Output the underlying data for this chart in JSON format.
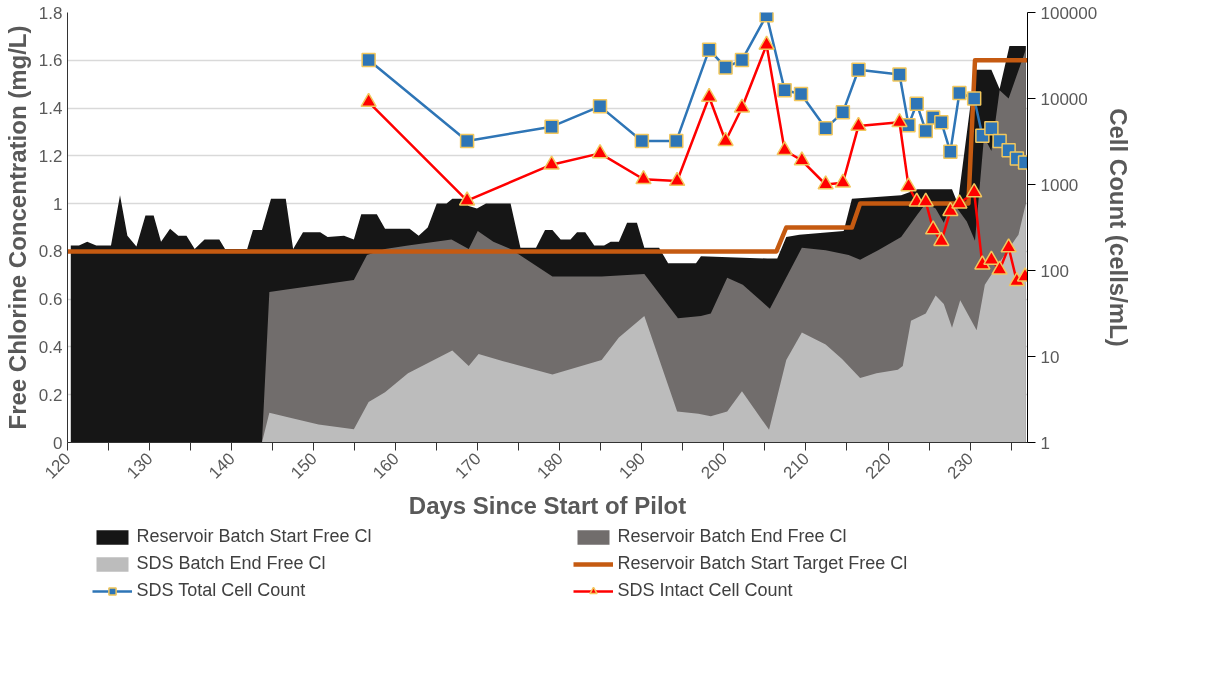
{
  "chart_data": {
    "type": "area",
    "xlabel": "Days Since Start of Pilot",
    "ylabel": "Free Chlorine Concentration (mg/L)",
    "y2label": "Cell Count (cells/mL)",
    "xlim": [
      120,
      237
    ],
    "xticks": [
      120,
      {
        "value": 125,
        "label": null
      },
      130,
      {
        "value": 135,
        "label": null
      },
      140,
      {
        "value": 145,
        "label": null
      },
      150,
      {
        "value": 155,
        "label": null
      },
      160,
      {
        "value": 165,
        "label": null
      },
      170,
      {
        "value": 175,
        "label": null
      },
      180,
      {
        "value": 185,
        "label": null
      },
      190,
      {
        "value": 195,
        "label": null
      },
      200,
      {
        "value": 205,
        "label": null
      },
      210,
      {
        "value": 215,
        "label": null
      },
      220,
      {
        "value": 225,
        "label": null
      },
      230,
      {
        "value": 235,
        "label": null
      }
    ],
    "ylim": [
      0,
      1.8
    ],
    "yticks": [
      0,
      0.2,
      0.4,
      0.6,
      0.8,
      1,
      1.2,
      1.4,
      1.6,
      1.8
    ],
    "y2lim": [
      1,
      100000
    ],
    "y2ticks": [
      1,
      10,
      100,
      1000,
      10000,
      100000
    ],
    "log": "y2",
    "grid": "y",
    "legend": "bottom",
    "series": [
      {
        "name": "Reservoir Batch Start Free Cl",
        "color": "#161616",
        "x": [
          120.4,
          121.4,
          122.4,
          123.5,
          125.3,
          126.4,
          127.3,
          128.4,
          129.5,
          130.5,
          131.4,
          132.5,
          133.5,
          134.5,
          135.5,
          136.7,
          138.5,
          139.2,
          141.9,
          142.6,
          143.7,
          144.8,
          146.6,
          147.5,
          148.7,
          150.8,
          151.7,
          153.7,
          154.9,
          155.8,
          157.7,
          158.7,
          161.7,
          162.8,
          163.9,
          165.0,
          166.2,
          166.9,
          168.0,
          168.9,
          169.9,
          171.0,
          174.0,
          175.2,
          177.1,
          178.2,
          179.1,
          180.1,
          181.3,
          182.1,
          183.1,
          184.2,
          185.4,
          186.2,
          187.2,
          188.2,
          189.4,
          190.3,
          192.1,
          193.2,
          196.6,
          197.2,
          205.3,
          206.5,
          207.6,
          209.2,
          214.6,
          215.6,
          221.6,
          223.6,
          227.8,
          228.5,
          230.6,
          232.6,
          233.6,
          234.8,
          236.8
        ],
        "values": [
          0.825,
          0.825,
          0.84,
          0.825,
          0.825,
          1.035,
          0.865,
          0.82,
          0.95,
          0.95,
          0.84,
          0.895,
          0.865,
          0.865,
          0.81,
          0.85,
          0.85,
          0.81,
          0.81,
          0.89,
          0.89,
          1.02,
          1.02,
          0.81,
          0.88,
          0.88,
          0.86,
          0.865,
          0.85,
          0.955,
          0.955,
          0.895,
          0.895,
          0.865,
          0.9,
          1.0,
          1.0,
          1.02,
          1.02,
          0.99,
          0.98,
          1.0,
          1.0,
          0.815,
          0.815,
          0.89,
          0.89,
          0.85,
          0.85,
          0.88,
          0.88,
          0.825,
          0.825,
          0.84,
          0.84,
          0.92,
          0.92,
          0.815,
          0.815,
          0.75,
          0.75,
          0.78,
          0.77,
          0.77,
          0.86,
          0.87,
          0.885,
          1.02,
          1.035,
          1.06,
          1.06,
          1.0,
          1.56,
          1.56,
          1.48,
          1.66,
          1.66
        ]
      },
      {
        "name": "Reservoir Batch End Free Cl",
        "color": "#716d6c",
        "x": [
          143.7,
          144.6,
          146.7,
          151.7,
          154.9,
          156.5,
          158.7,
          161.5,
          166.8,
          168.9,
          170.0,
          171.9,
          174.0,
          179.1,
          185.1,
          190.3,
          194.4,
          197.2,
          198.4,
          200.4,
          202.3,
          205.6,
          209.5,
          212.4,
          215.2,
          216.6,
          218.8,
          221.6,
          223.6,
          224.6,
          225.8,
          226.8,
          227.8,
          229.6,
          230.6,
          231.7,
          232.6,
          233.6,
          234.7,
          236.8
        ],
        "values": [
          0,
          0.63,
          0.64,
          0.665,
          0.68,
          0.785,
          0.81,
          0.825,
          0.85,
          0.81,
          0.885,
          0.84,
          0.81,
          0.695,
          0.695,
          0.705,
          0.52,
          0.53,
          0.54,
          0.69,
          0.66,
          0.56,
          0.815,
          0.805,
          0.785,
          0.765,
          0.805,
          0.86,
          0.955,
          1.0,
          0.98,
          0.92,
          1.01,
          0.925,
          0.845,
          1.28,
          1.22,
          1.475,
          1.44,
          1.645
        ]
      },
      {
        "name": "SDS Batch End Free Cl",
        "color": "#bcbcbc",
        "x": [
          143.7,
          144.6,
          147.0,
          150.6,
          154.9,
          156.7,
          158.7,
          161.5,
          166.9,
          168.9,
          170.1,
          173.1,
          179.1,
          185.1,
          187.2,
          190.3,
          194.3,
          196.9,
          198.4,
          200.4,
          202.2,
          205.5,
          207.6,
          209.5,
          212.4,
          214.4,
          216.6,
          218.6,
          221.2,
          221.8,
          222.8,
          224.6,
          225.8,
          226.8,
          227.8,
          228.8,
          230.8,
          231.8,
          233.5,
          235.9,
          236.8
        ],
        "values": [
          0,
          0.125,
          0.105,
          0.075,
          0.055,
          0.17,
          0.21,
          0.29,
          0.385,
          0.32,
          0.37,
          0.34,
          0.285,
          0.345,
          0.44,
          0.53,
          0.13,
          0.12,
          0.11,
          0.13,
          0.215,
          0.053,
          0.345,
          0.46,
          0.41,
          0.35,
          0.27,
          0.29,
          0.305,
          0.32,
          0.51,
          0.54,
          0.615,
          0.58,
          0.48,
          0.595,
          0.47,
          0.66,
          0.75,
          0.87,
          1.0
        ]
      },
      {
        "name": "Reservoir Batch Start Target Free Cl",
        "type": "line",
        "color": "#c55a11",
        "marker": "none",
        "x": [
          120,
          206.4,
          207.6,
          215.6,
          216.6,
          229.8,
          230.6,
          237
        ],
        "values": [
          0.8,
          0.8,
          0.9,
          0.9,
          1.0,
          1.0,
          1.6,
          1.6
        ]
      },
      {
        "name": "SDS Total Cell Count",
        "type": "line",
        "color": "#2e75b6",
        "marker": "square",
        "axis": "y2",
        "x": [
          156.7,
          168.7,
          179.0,
          184.9,
          190.0,
          194.2,
          198.2,
          200.2,
          202.2,
          205.2,
          207.4,
          209.4,
          212.4,
          214.5,
          216.4,
          221.4,
          222.5,
          223.5,
          224.6,
          225.5,
          226.5,
          227.6,
          228.7,
          230.5,
          231.5,
          232.6,
          233.6,
          234.7,
          235.7,
          236.7
        ],
        "values": [
          28000,
          3200,
          4700,
          8100,
          3200,
          3200,
          37000,
          23000,
          28000,
          93000,
          12500,
          11300,
          4500,
          6900,
          21600,
          19000,
          4900,
          8700,
          4200,
          6000,
          5300,
          2400,
          11600,
          10000,
          3700,
          4500,
          3200,
          2500,
          2000,
          1800
        ]
      },
      {
        "name": "SDS Intact Cell Count",
        "type": "line",
        "color": "#ff0000",
        "marker": "triangle",
        "axis": "y2",
        "x": [
          156.7,
          168.7,
          179.0,
          184.9,
          190.2,
          194.3,
          198.2,
          200.2,
          202.2,
          205.2,
          207.4,
          209.5,
          212.4,
          214.5,
          216.4,
          221.4,
          222.5,
          223.5,
          224.6,
          225.5,
          226.5,
          227.6,
          228.7,
          230.5,
          231.5,
          232.6,
          233.6,
          234.7,
          235.7,
          236.7
        ],
        "values": [
          9100,
          650,
          1700,
          2300,
          1150,
          1100,
          10400,
          3200,
          7800,
          42000,
          2500,
          1900,
          1000,
          1050,
          4800,
          5300,
          950,
          630,
          630,
          300,
          220,
          490,
          600,
          810,
          117,
          133,
          102,
          185,
          75,
          85
        ]
      }
    ]
  }
}
